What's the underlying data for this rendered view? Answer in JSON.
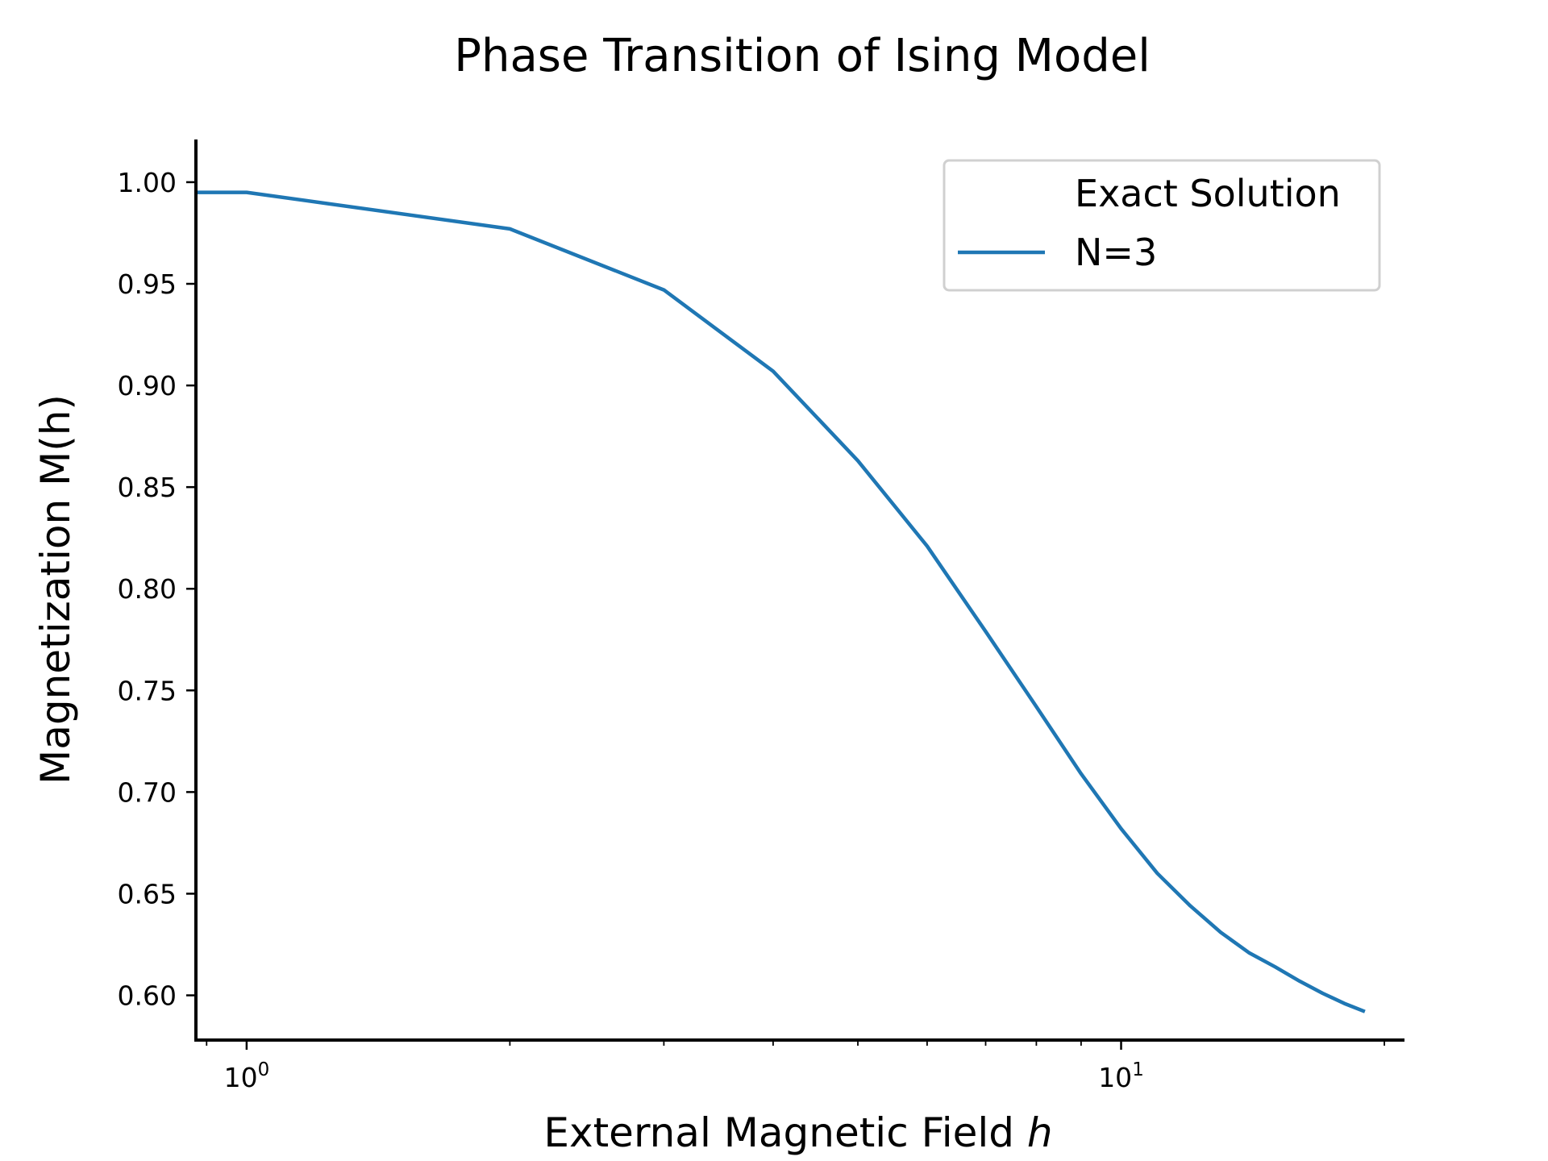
{
  "chart_data": {
    "type": "line",
    "title": "Phase Transition of Ising Model",
    "xlabel_main": "External Magnetic Field ",
    "xlabel_var": "h",
    "ylabel": "Magnetization M(h)",
    "xscale": "log",
    "xlim": [
      0.875,
      21
    ],
    "ylim": [
      0.578,
      1.021
    ],
    "x_ticks": [
      {
        "value": 1,
        "base": "10",
        "exp": "0"
      },
      {
        "value": 10,
        "base": "10",
        "exp": "1"
      }
    ],
    "y_ticks": [
      {
        "value": 0.6,
        "label": "0.60"
      },
      {
        "value": 0.65,
        "label": "0.65"
      },
      {
        "value": 0.7,
        "label": "0.70"
      },
      {
        "value": 0.75,
        "label": "0.75"
      },
      {
        "value": 0.8,
        "label": "0.80"
      },
      {
        "value": 0.85,
        "label": "0.85"
      },
      {
        "value": 0.9,
        "label": "0.90"
      },
      {
        "value": 0.95,
        "label": "0.95"
      },
      {
        "value": 1.0,
        "label": "1.00"
      }
    ],
    "grid": false,
    "legend": {
      "placement": "upper right",
      "title": "Exact Solution",
      "entries": [
        "N=3"
      ]
    },
    "series": [
      {
        "name": "N=3",
        "color": "#1f77b4",
        "x": [
          0.875,
          1,
          2,
          3,
          4,
          5,
          6,
          7,
          8,
          9,
          10,
          11,
          12,
          13,
          14,
          15,
          16,
          17,
          18,
          19
        ],
        "y": [
          0.995,
          0.995,
          0.977,
          0.947,
          0.907,
          0.863,
          0.821,
          0.779,
          0.742,
          0.709,
          0.682,
          0.66,
          0.644,
          0.631,
          0.621,
          0.614,
          0.607,
          0.601,
          0.596,
          0.592
        ]
      }
    ]
  }
}
